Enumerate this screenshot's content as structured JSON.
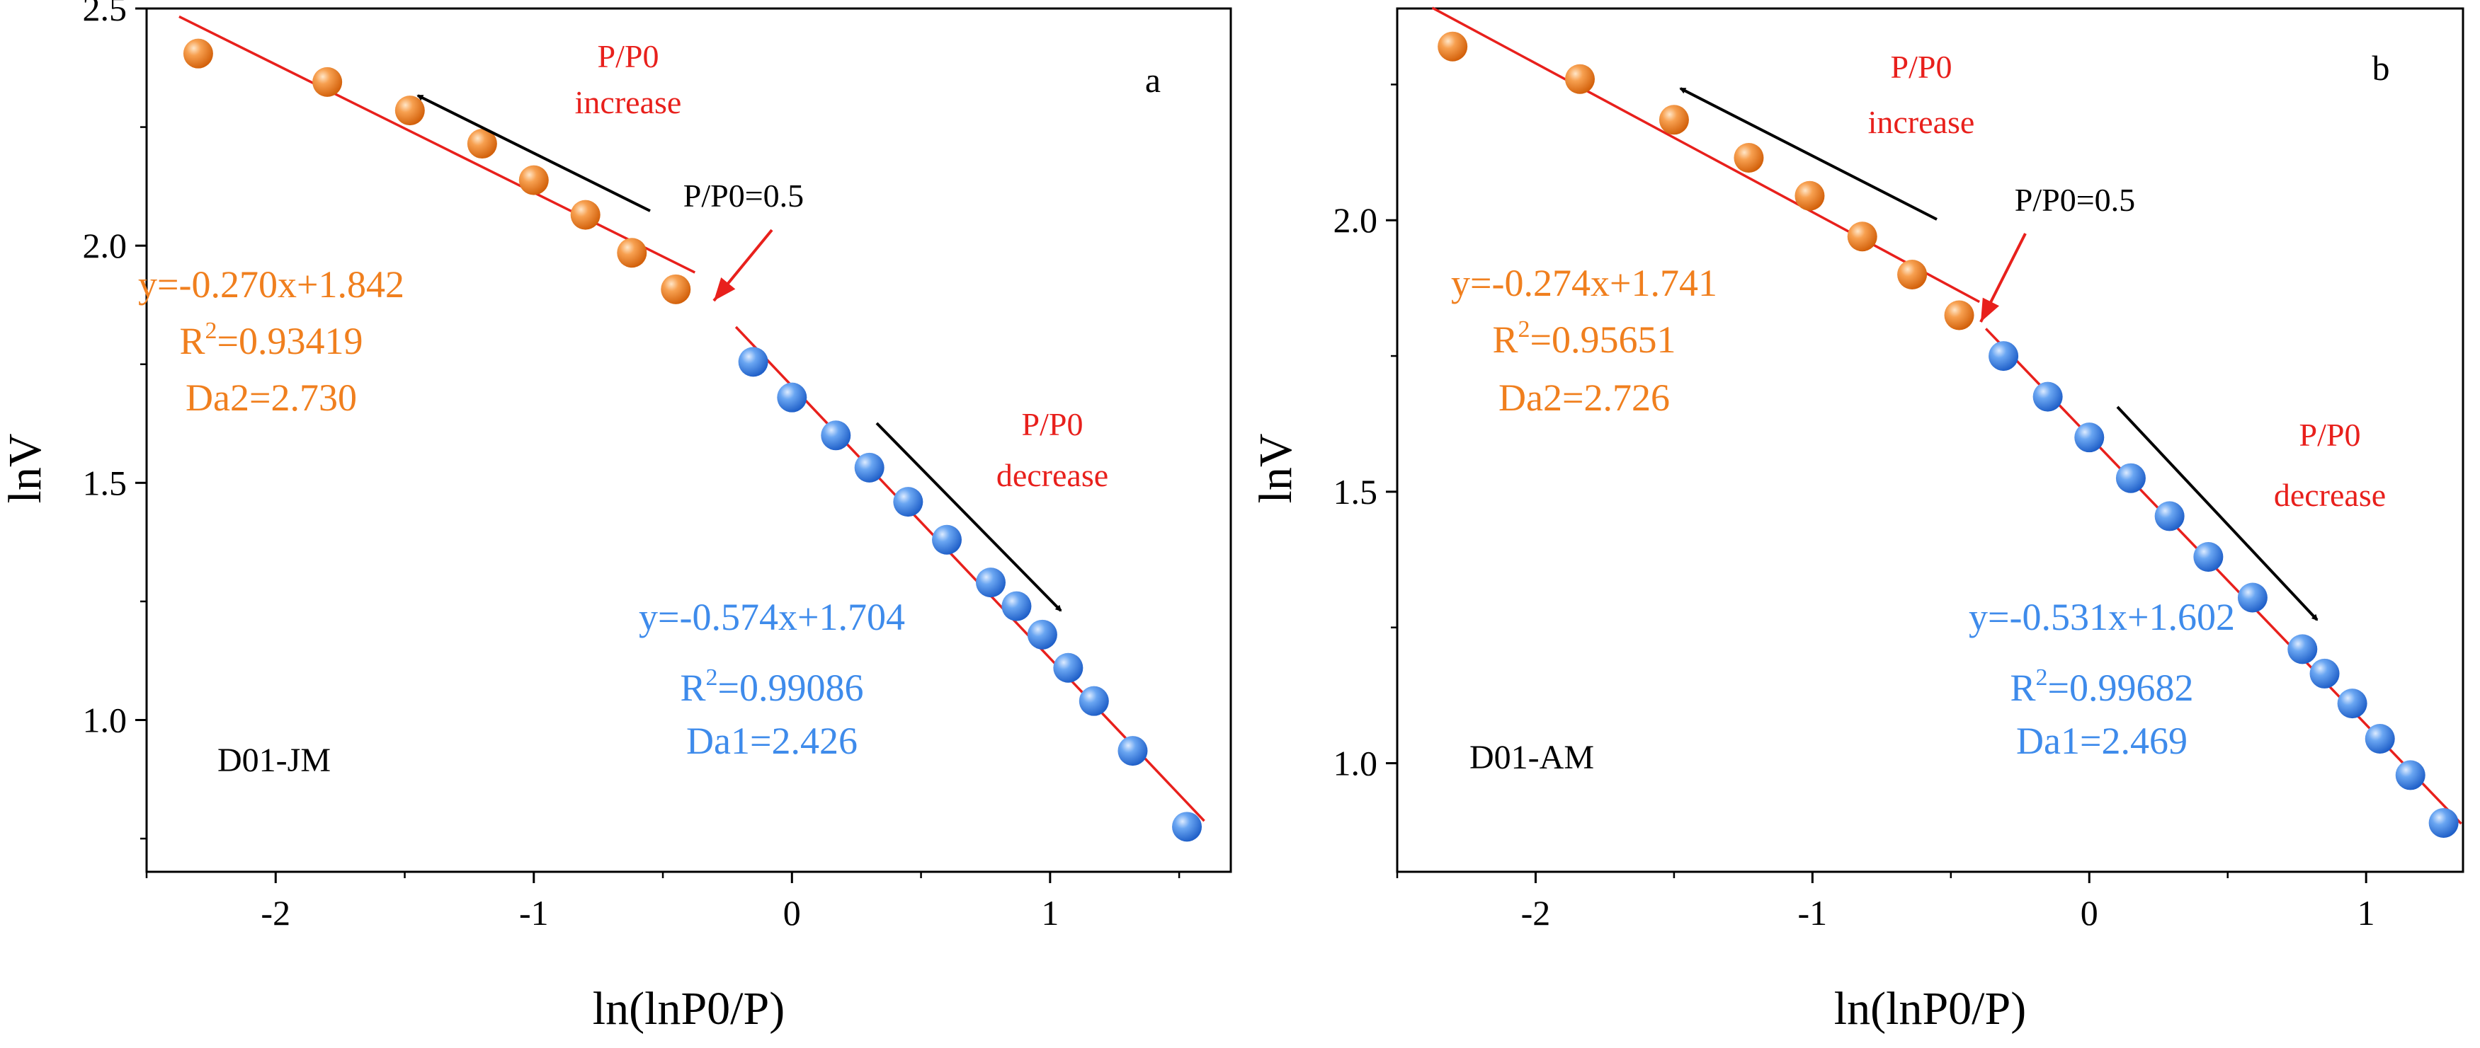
{
  "colors": {
    "orange": "#F07F1E",
    "blue": "#3E8BEB",
    "fit": "#E8201C",
    "note": "#E8201C",
    "black": "#000000"
  },
  "chart_data": [
    {
      "type": "scatter",
      "panel_label": "a",
      "sample_label": "D01-JM",
      "xlabel": "ln(lnP0/P)",
      "ylabel": "lnV",
      "xlim": [
        -2.5,
        1.7
      ],
      "ylim": [
        0.68,
        2.5
      ],
      "xticks": [
        -2,
        -1,
        0,
        1
      ],
      "xtick_labels": [
        "-2",
        "-1",
        "0",
        "1"
      ],
      "yticks": [
        1.0,
        1.5,
        2.0,
        2.5
      ],
      "ytick_labels": [
        "1.0",
        "1.5",
        "2.0",
        "2.5"
      ],
      "threshold_label": "P/P0=0.5",
      "increase_label": [
        "P/P0",
        "increase"
      ],
      "decrease_label": [
        "P/P0",
        "decrease"
      ],
      "series": [
        {
          "x": [
            -2.3,
            -1.8,
            -1.48,
            -1.2,
            -1.0,
            -0.8,
            -0.62,
            -0.45
          ],
          "y": [
            2.405,
            2.345,
            2.285,
            2.215,
            2.138,
            2.065,
            1.985,
            1.908
          ],
          "fit": {
            "slope": -0.27,
            "intercept": 1.842,
            "x_range": [
              -2.3,
              -0.45
            ]
          },
          "equation": "y=-0.270x+1.842",
          "r2_value": "=0.93419",
          "d_label": "Da2=2.730"
        },
        {
          "x": [
            -0.15,
            0.0,
            0.17,
            0.3,
            0.45,
            0.6,
            0.77,
            0.87,
            0.97,
            1.07,
            1.17,
            1.32,
            1.53
          ],
          "y": [
            1.755,
            1.68,
            1.6,
            1.532,
            1.46,
            1.38,
            1.29,
            1.24,
            1.18,
            1.11,
            1.04,
            0.935,
            0.775
          ],
          "fit": {
            "slope": -0.574,
            "intercept": 1.704,
            "x_range": [
              -0.15,
              1.53
            ]
          },
          "equation": "y=-0.574x+1.704",
          "r2_value": "=0.99086",
          "d_label": "Da1=2.426"
        }
      ]
    },
    {
      "type": "scatter",
      "panel_label": "b",
      "sample_label": "D01-AM",
      "xlabel": "ln(lnP0/P)",
      "ylabel": "lnV",
      "xlim": [
        -2.5,
        1.35
      ],
      "ylim": [
        0.8,
        2.39
      ],
      "xticks": [
        -2,
        -1,
        0,
        1
      ],
      "xtick_labels": [
        "-2",
        "-1",
        "0",
        "1"
      ],
      "yticks": [
        1.0,
        1.5,
        2.0
      ],
      "ytick_labels": [
        "1.0",
        "1.5",
        "2.0"
      ],
      "threshold_label": "P/P0=0.5",
      "increase_label": [
        "P/P0",
        "increase"
      ],
      "decrease_label": [
        "P/P0",
        "decrease"
      ],
      "series": [
        {
          "x": [
            -2.3,
            -1.84,
            -1.5,
            -1.23,
            -1.01,
            -0.82,
            -0.64,
            -0.47
          ],
          "y": [
            2.32,
            2.26,
            2.185,
            2.115,
            2.045,
            1.97,
            1.9,
            1.825
          ],
          "fit": {
            "slope": -0.274,
            "intercept": 1.741,
            "x_range": [
              -2.3,
              -0.47
            ]
          },
          "equation": "y=-0.274x+1.741",
          "r2_value": "=0.95651",
          "d_label": "Da2=2.726"
        },
        {
          "x": [
            -0.31,
            -0.15,
            0.0,
            0.15,
            0.29,
            0.43,
            0.59,
            0.77,
            0.85,
            0.95,
            1.05,
            1.16,
            1.28
          ],
          "y": [
            1.75,
            1.675,
            1.6,
            1.525,
            1.455,
            1.38,
            1.305,
            1.21,
            1.165,
            1.11,
            1.045,
            0.978,
            0.89
          ],
          "fit": {
            "slope": -0.531,
            "intercept": 1.602,
            "x_range": [
              -0.31,
              1.28
            ]
          },
          "equation": "y=-0.531x+1.602",
          "r2_value": "=0.99682",
          "d_label": "Da1=2.469"
        }
      ]
    }
  ]
}
